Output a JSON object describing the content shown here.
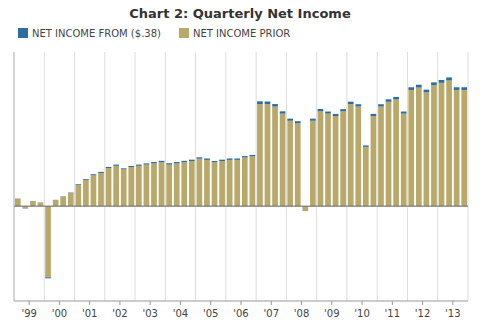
{
  "chart_data": {
    "type": "bar",
    "title": "Chart 2: Quarterly Net Income",
    "stacked": true,
    "grid": true,
    "legend": "upper left",
    "tick_labels": "x",
    "ylim": [
      -80,
      130
    ],
    "categories": [
      "'99",
      null,
      null,
      null,
      "'00",
      null,
      null,
      null,
      "'01",
      null,
      null,
      null,
      "'02",
      null,
      null,
      null,
      "'03",
      null,
      null,
      null,
      "'04",
      null,
      null,
      null,
      "'05",
      null,
      null,
      null,
      "'06",
      null,
      null,
      null,
      "'07",
      null,
      null,
      null,
      "'08",
      null,
      null,
      null,
      "'09",
      null,
      null,
      null,
      "'10",
      null,
      null,
      null,
      "'11",
      null,
      null,
      null,
      "'12",
      null,
      null,
      null,
      "'13",
      null,
      null,
      null
    ],
    "series": [
      {
        "name": "NET INCOME PRIOR",
        "color": "#b8a86a",
        "values": [
          6,
          -2,
          4,
          3,
          -60,
          5,
          8,
          11,
          18,
          22,
          26,
          28,
          32,
          34,
          31,
          33,
          34,
          35,
          36,
          37,
          35,
          36,
          37,
          38,
          40,
          39,
          37,
          38,
          39,
          39,
          41,
          42,
          86,
          86,
          84,
          78,
          72,
          70,
          -4,
          72,
          80,
          78,
          76,
          80,
          86,
          84,
          50,
          76,
          84,
          88,
          90,
          78,
          98,
          100,
          96,
          102,
          104,
          106,
          98,
          98
        ]
      },
      {
        "name": "NET INCOME FROM ($.38)",
        "color": "#2e6e9e",
        "values": [
          0.3,
          -0.15,
          0.3,
          0.15,
          -0.9,
          0.3,
          0.3,
          0.45,
          0.6,
          0.75,
          0.9,
          0.9,
          1.05,
          1.05,
          0.9,
          0.9,
          1.05,
          1.05,
          1.2,
          1.2,
          1.2,
          1.2,
          1.2,
          1.2,
          1.2,
          1.2,
          1.05,
          1.2,
          1.2,
          1.2,
          1.2,
          1.2,
          2.4,
          2.25,
          2.1,
          1.95,
          1.8,
          1.65,
          -0.15,
          1.8,
          1.95,
          1.8,
          1.8,
          1.8,
          2.1,
          1.95,
          1.2,
          1.8,
          1.95,
          2.1,
          2.1,
          1.8,
          2.25,
          2.4,
          2.25,
          2.4,
          2.4,
          2.55,
          2.25,
          2.25
        ]
      }
    ]
  }
}
